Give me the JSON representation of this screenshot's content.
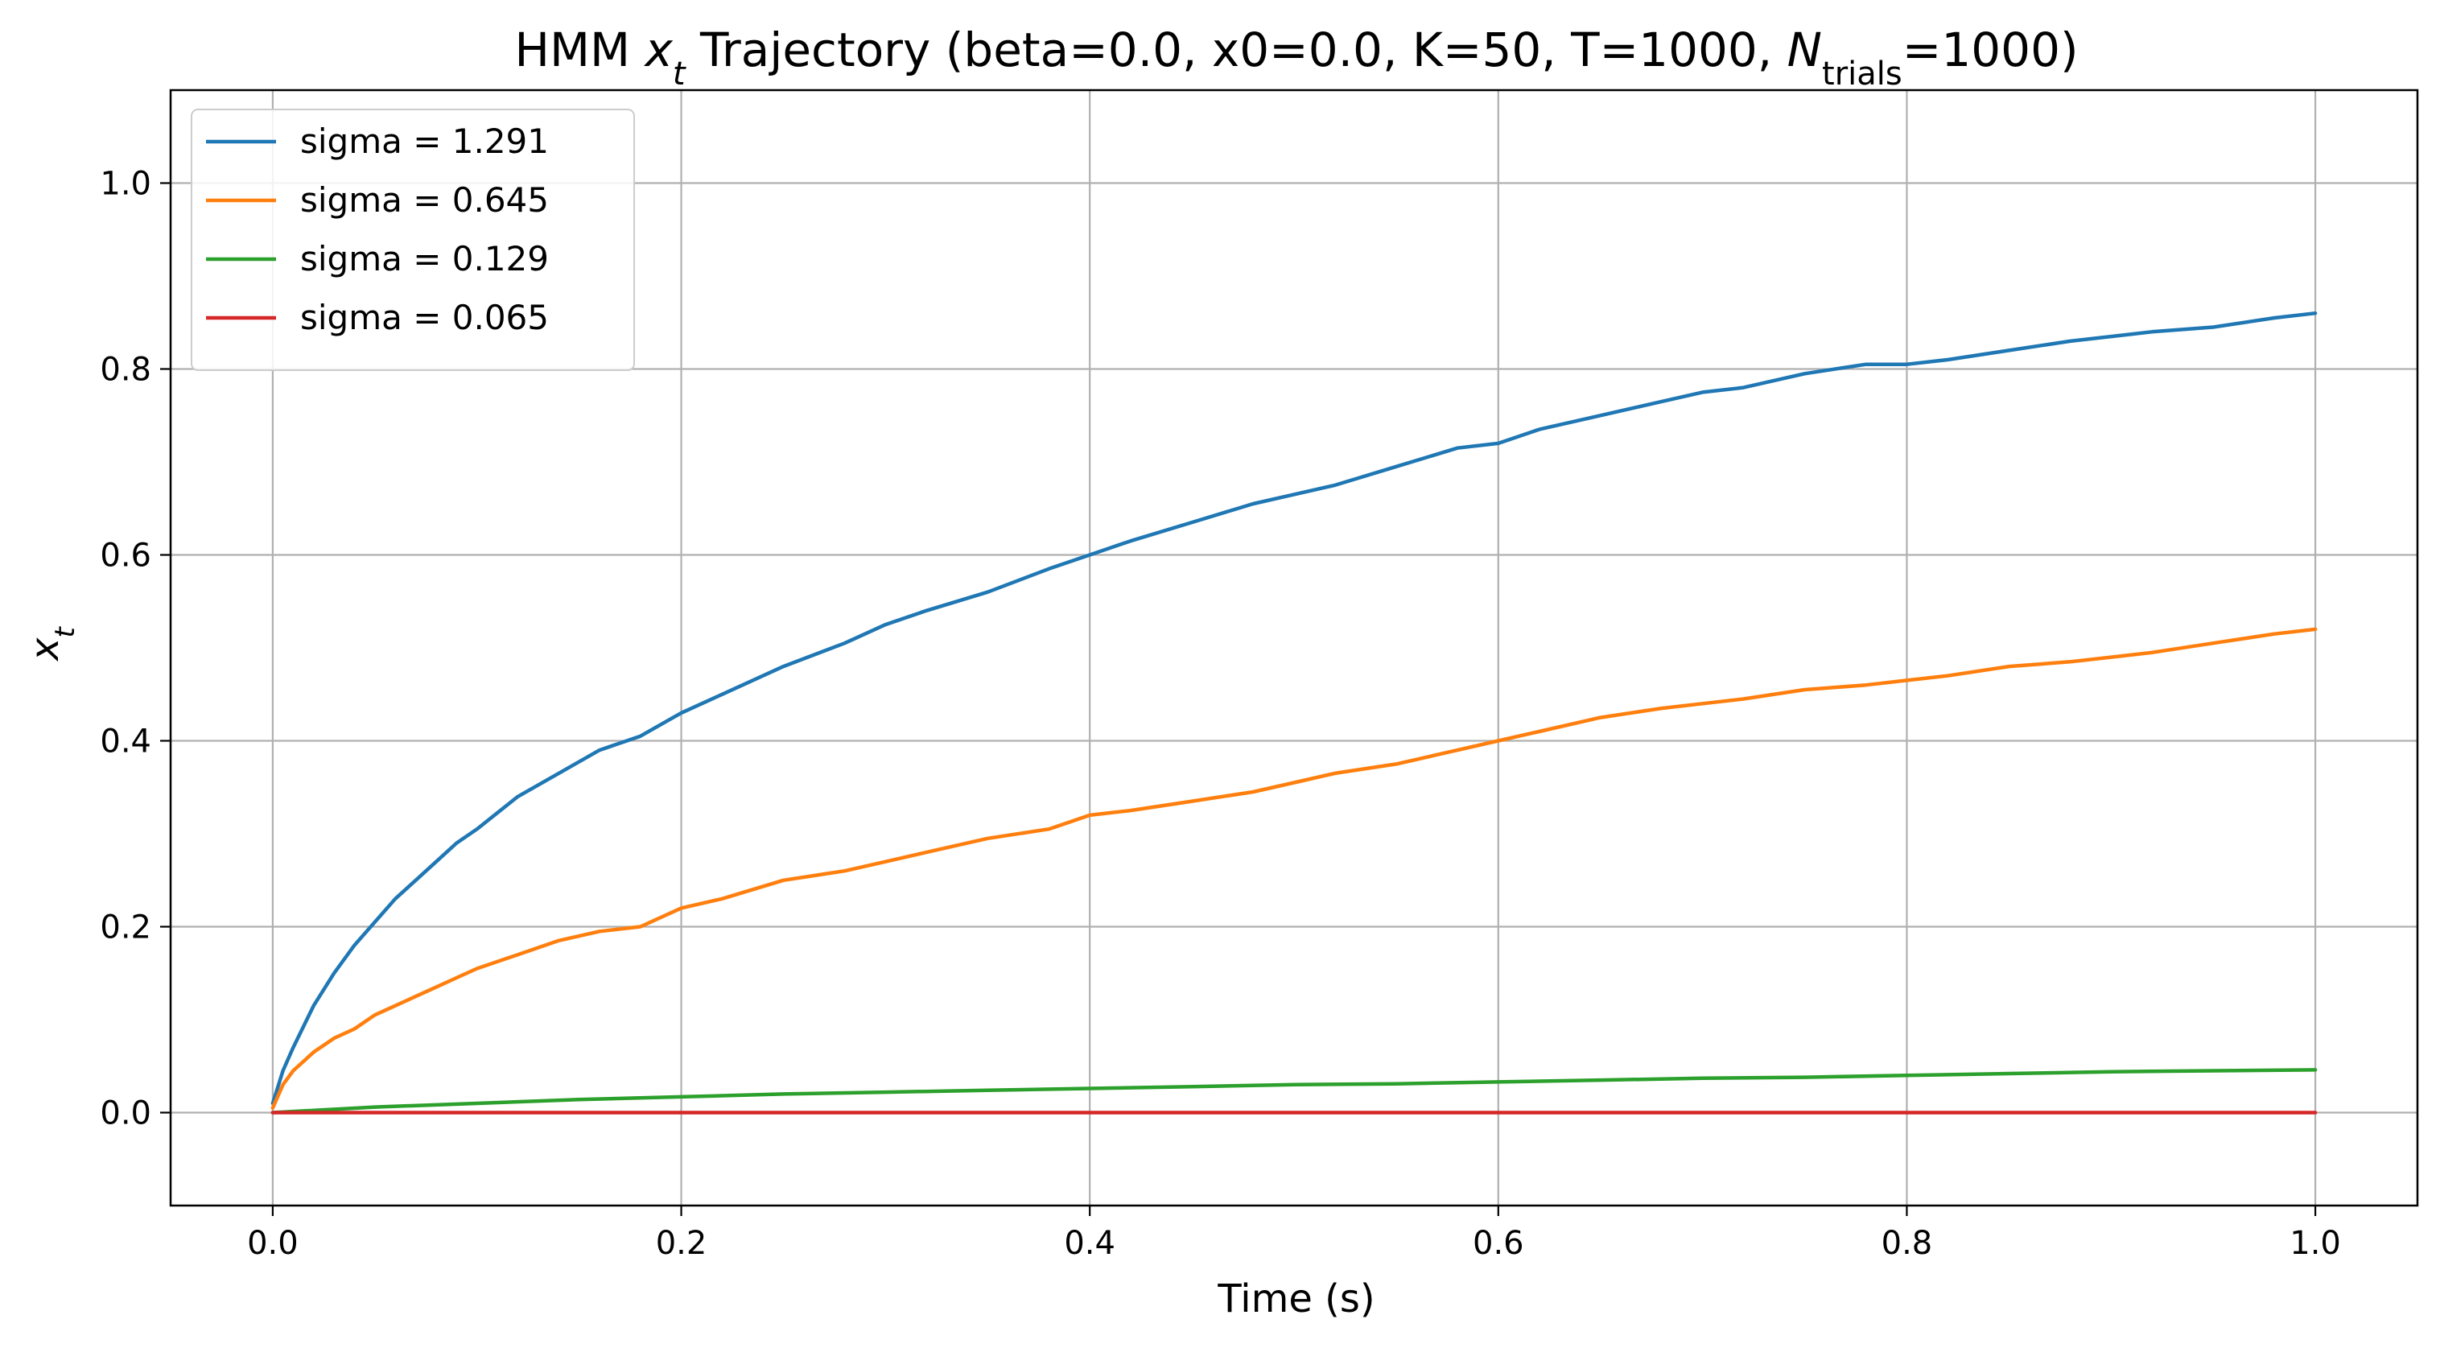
{
  "chart_data": {
    "type": "line",
    "title": {
      "prefix": "HMM ",
      "var": "x",
      "var_sub": "t",
      "mid": " Trajectory (beta=0.0, x0=0.0, K=50, T=1000, ",
      "n": "N",
      "n_sub": "trials",
      "suffix": "=1000)"
    },
    "xlabel": "Time (s)",
    "ylabel": {
      "var": "x",
      "sub": "t"
    },
    "xlim": [
      -0.05,
      1.05
    ],
    "ylim": [
      -0.1,
      1.1
    ],
    "xticks": [
      0.0,
      0.2,
      0.4,
      0.6,
      0.8,
      1.0
    ],
    "xtick_labels": [
      "0.0",
      "0.2",
      "0.4",
      "0.6",
      "0.8",
      "1.0"
    ],
    "yticks": [
      0.0,
      0.2,
      0.4,
      0.6,
      0.8,
      1.0
    ],
    "ytick_labels": [
      "0.0",
      "0.2",
      "0.4",
      "0.6",
      "0.8",
      "1.0"
    ],
    "grid": true,
    "legend_position": "top-left",
    "series": [
      {
        "name": "sigma = 1.291",
        "color": "#1f77b4",
        "x": [
          0.0,
          0.005,
          0.01,
          0.02,
          0.03,
          0.04,
          0.05,
          0.06,
          0.07,
          0.08,
          0.09,
          0.1,
          0.12,
          0.14,
          0.16,
          0.18,
          0.2,
          0.22,
          0.25,
          0.28,
          0.3,
          0.32,
          0.35,
          0.38,
          0.4,
          0.42,
          0.45,
          0.48,
          0.5,
          0.52,
          0.55,
          0.58,
          0.6,
          0.62,
          0.65,
          0.68,
          0.7,
          0.72,
          0.75,
          0.78,
          0.8,
          0.82,
          0.85,
          0.88,
          0.9,
          0.92,
          0.95,
          0.98,
          1.0
        ],
        "y": [
          0.01,
          0.045,
          0.07,
          0.115,
          0.15,
          0.18,
          0.205,
          0.23,
          0.25,
          0.27,
          0.29,
          0.305,
          0.34,
          0.365,
          0.39,
          0.405,
          0.43,
          0.45,
          0.48,
          0.505,
          0.525,
          0.54,
          0.56,
          0.585,
          0.6,
          0.615,
          0.635,
          0.655,
          0.665,
          0.675,
          0.695,
          0.715,
          0.72,
          0.735,
          0.75,
          0.765,
          0.775,
          0.78,
          0.795,
          0.805,
          0.805,
          0.81,
          0.82,
          0.83,
          0.835,
          0.84,
          0.845,
          0.855,
          0.86
        ]
      },
      {
        "name": "sigma = 0.645",
        "color": "#ff7f0e",
        "x": [
          0.0,
          0.005,
          0.01,
          0.02,
          0.03,
          0.04,
          0.05,
          0.06,
          0.07,
          0.08,
          0.09,
          0.1,
          0.12,
          0.14,
          0.16,
          0.18,
          0.2,
          0.22,
          0.25,
          0.28,
          0.3,
          0.32,
          0.35,
          0.38,
          0.4,
          0.42,
          0.45,
          0.48,
          0.5,
          0.52,
          0.55,
          0.58,
          0.6,
          0.62,
          0.65,
          0.68,
          0.7,
          0.72,
          0.75,
          0.78,
          0.8,
          0.82,
          0.85,
          0.88,
          0.9,
          0.92,
          0.95,
          0.98,
          1.0
        ],
        "y": [
          0.005,
          0.03,
          0.045,
          0.065,
          0.08,
          0.09,
          0.105,
          0.115,
          0.125,
          0.135,
          0.145,
          0.155,
          0.17,
          0.185,
          0.195,
          0.2,
          0.22,
          0.23,
          0.25,
          0.26,
          0.27,
          0.28,
          0.295,
          0.305,
          0.32,
          0.325,
          0.335,
          0.345,
          0.355,
          0.365,
          0.375,
          0.39,
          0.4,
          0.41,
          0.425,
          0.435,
          0.44,
          0.445,
          0.455,
          0.46,
          0.465,
          0.47,
          0.48,
          0.485,
          0.49,
          0.495,
          0.505,
          0.515,
          0.52
        ]
      },
      {
        "name": "sigma = 0.129",
        "color": "#2ca02c",
        "x": [
          0.0,
          0.05,
          0.1,
          0.15,
          0.2,
          0.25,
          0.3,
          0.35,
          0.4,
          0.45,
          0.5,
          0.55,
          0.6,
          0.65,
          0.7,
          0.75,
          0.8,
          0.85,
          0.9,
          0.95,
          1.0
        ],
        "y": [
          0.0,
          0.006,
          0.01,
          0.014,
          0.017,
          0.02,
          0.022,
          0.024,
          0.026,
          0.028,
          0.03,
          0.031,
          0.033,
          0.035,
          0.037,
          0.038,
          0.04,
          0.042,
          0.044,
          0.045,
          0.046
        ]
      },
      {
        "name": "sigma = 0.065",
        "color": "#d62728",
        "x": [
          0.0,
          0.25,
          0.5,
          0.75,
          1.0
        ],
        "y": [
          0.0,
          0.0,
          0.0,
          0.0,
          0.0
        ]
      }
    ]
  }
}
